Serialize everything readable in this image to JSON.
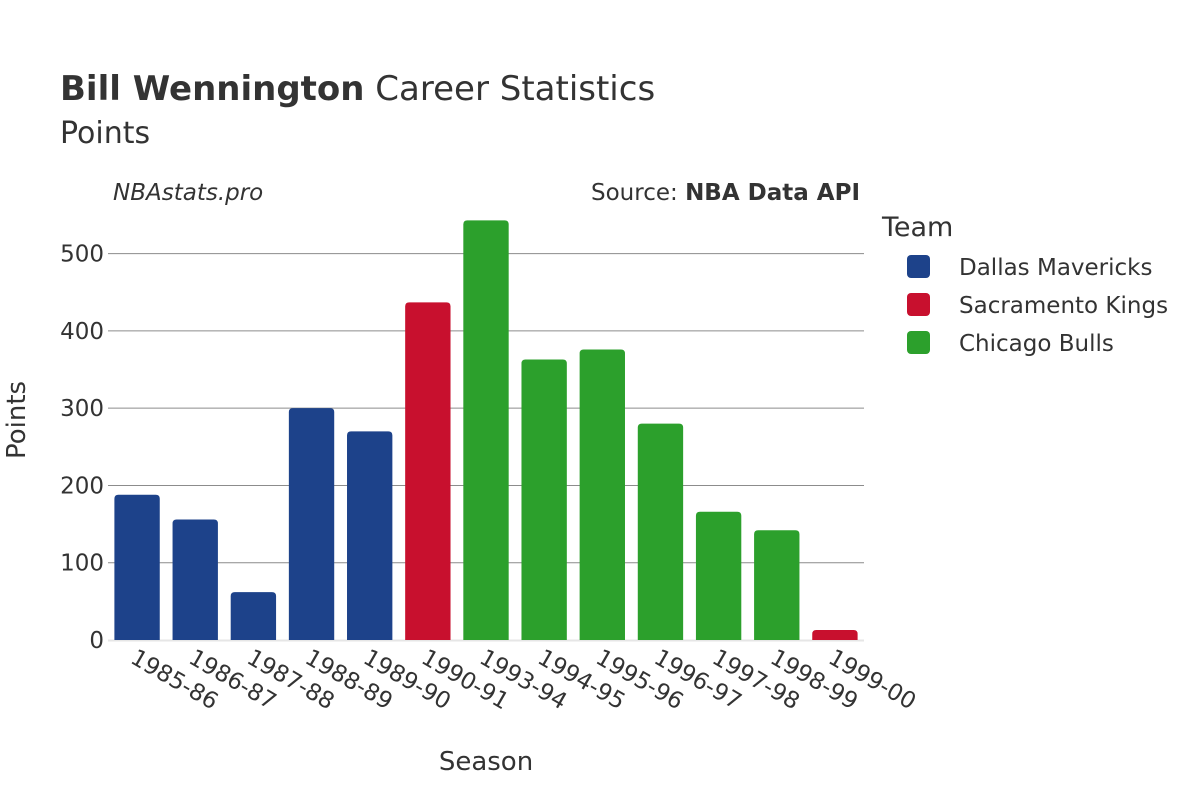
{
  "title": {
    "bold": "Bill Wennington",
    "rest": " Career Statistics",
    "subtitle": "Points"
  },
  "credit_left": "NBAstats.pro",
  "credit_right_prefix": "Source: ",
  "credit_right_bold": "NBA Data API",
  "legend": {
    "title": "Team",
    "position": "right",
    "items": [
      {
        "label": "Dallas Mavericks",
        "color": "#1d428a"
      },
      {
        "label": "Sacramento Kings",
        "color": "#c8102e"
      },
      {
        "label": "Chicago Bulls",
        "color": "#2ca02c"
      }
    ]
  },
  "chart_data": {
    "type": "bar",
    "xlabel": "Season",
    "ylabel": "Points",
    "ylim": [
      0,
      550
    ],
    "yticks": [
      0,
      100,
      200,
      300,
      400,
      500
    ],
    "grid": true,
    "categories": [
      "1985-86",
      "1986-87",
      "1987-88",
      "1988-89",
      "1989-90",
      "1990-91",
      "1993-94",
      "1994-95",
      "1995-96",
      "1996-97",
      "1997-98",
      "1998-99",
      "1999-00"
    ],
    "values": [
      188,
      156,
      62,
      300,
      270,
      437,
      543,
      363,
      376,
      280,
      166,
      142,
      13
    ],
    "teams": [
      "Dallas Mavericks",
      "Dallas Mavericks",
      "Dallas Mavericks",
      "Dallas Mavericks",
      "Dallas Mavericks",
      "Sacramento Kings",
      "Chicago Bulls",
      "Chicago Bulls",
      "Chicago Bulls",
      "Chicago Bulls",
      "Chicago Bulls",
      "Chicago Bulls",
      "Sacramento Kings"
    ]
  }
}
